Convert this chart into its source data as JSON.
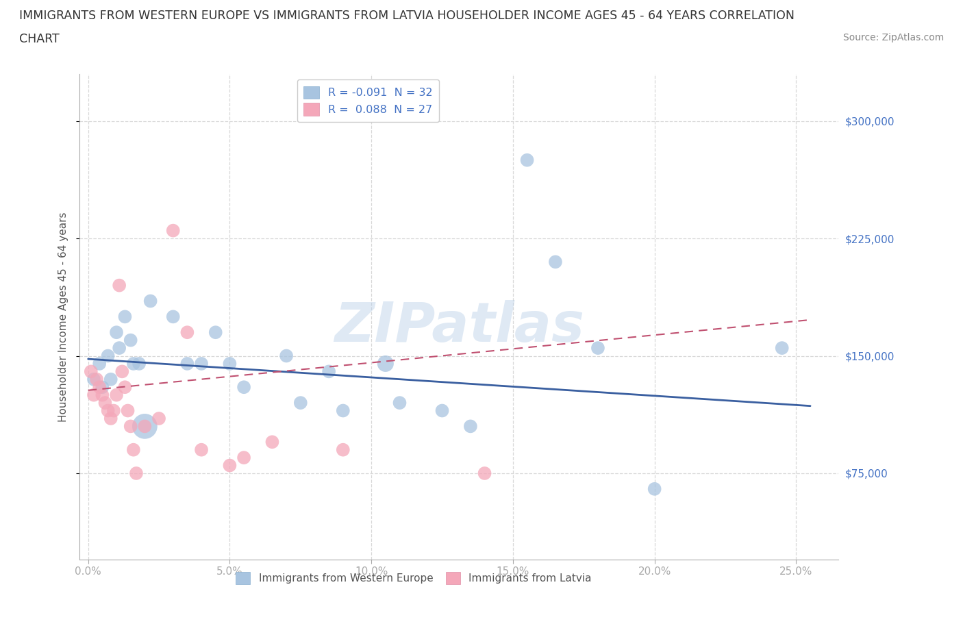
{
  "title_line1": "IMMIGRANTS FROM WESTERN EUROPE VS IMMIGRANTS FROM LATVIA HOUSEHOLDER INCOME AGES 45 - 64 YEARS CORRELATION",
  "title_line2": "CHART",
  "source_text": "Source: ZipAtlas.com",
  "ylabel": "Householder Income Ages 45 - 64 years",
  "xlabel_ticks": [
    "0.0%",
    "5.0%",
    "10.0%",
    "15.0%",
    "20.0%",
    "25.0%"
  ],
  "xlabel_vals": [
    0.0,
    5.0,
    10.0,
    15.0,
    20.0,
    25.0
  ],
  "ytick_labels": [
    "$75,000",
    "$150,000",
    "$225,000",
    "$300,000"
  ],
  "ytick_vals": [
    75000,
    150000,
    225000,
    300000
  ],
  "ylim": [
    20000,
    330000
  ],
  "xlim": [
    -0.3,
    26.5
  ],
  "watermark": "ZIPatlas",
  "we_legend": "R = -0.091  N = 32",
  "lv_legend": "R =  0.088  N = 27",
  "we_bottom_label": "Immigrants from Western Europe",
  "lv_bottom_label": "Immigrants from Latvia",
  "series_western_europe": {
    "scatter_color": "#a8c4e0",
    "line_color": "#3a5fa0",
    "x": [
      0.2,
      0.4,
      0.5,
      0.7,
      0.8,
      1.0,
      1.1,
      1.3,
      1.5,
      1.6,
      1.8,
      2.0,
      2.2,
      3.0,
      3.5,
      4.0,
      4.5,
      5.0,
      5.5,
      7.0,
      7.5,
      8.5,
      9.0,
      10.5,
      11.0,
      12.5,
      13.5,
      15.5,
      16.5,
      18.0,
      20.0,
      24.5
    ],
    "y": [
      135000,
      145000,
      130000,
      150000,
      135000,
      165000,
      155000,
      175000,
      160000,
      145000,
      145000,
      105000,
      185000,
      175000,
      145000,
      145000,
      165000,
      145000,
      130000,
      150000,
      120000,
      140000,
      115000,
      145000,
      120000,
      115000,
      105000,
      275000,
      210000,
      155000,
      65000,
      155000
    ],
    "sizes": [
      200,
      200,
      200,
      200,
      200,
      200,
      200,
      200,
      200,
      200,
      200,
      700,
      200,
      200,
      200,
      200,
      200,
      200,
      200,
      200,
      200,
      200,
      200,
      300,
      200,
      200,
      200,
      200,
      200,
      200,
      200,
      200
    ]
  },
  "series_latvia": {
    "scatter_color": "#f4a7b9",
    "line_color": "#c05070",
    "x": [
      0.1,
      0.2,
      0.3,
      0.4,
      0.5,
      0.6,
      0.7,
      0.8,
      0.9,
      1.0,
      1.1,
      1.2,
      1.3,
      1.4,
      1.5,
      1.6,
      1.7,
      2.0,
      2.5,
      3.0,
      3.5,
      4.0,
      5.0,
      5.5,
      6.5,
      9.0,
      14.0
    ],
    "y": [
      140000,
      125000,
      135000,
      130000,
      125000,
      120000,
      115000,
      110000,
      115000,
      125000,
      195000,
      140000,
      130000,
      115000,
      105000,
      90000,
      75000,
      105000,
      110000,
      230000,
      165000,
      90000,
      80000,
      85000,
      95000,
      90000,
      75000
    ],
    "sizes": [
      200,
      200,
      200,
      200,
      200,
      200,
      200,
      200,
      200,
      200,
      200,
      200,
      200,
      200,
      200,
      200,
      200,
      200,
      200,
      200,
      200,
      200,
      200,
      200,
      200,
      200,
      200
    ]
  },
  "background_color": "#ffffff",
  "grid_color": "#d8d8d8",
  "title_color": "#333333",
  "axis_label_color": "#555555",
  "tick_label_color": "#4472c4"
}
